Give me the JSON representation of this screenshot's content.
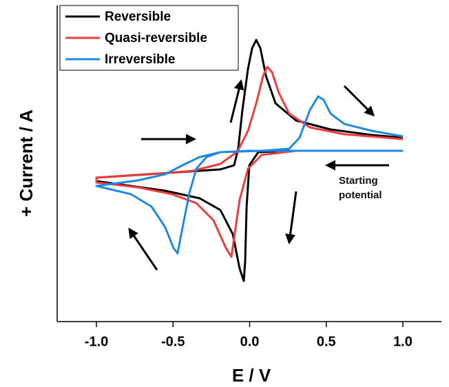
{
  "chart_data": {
    "type": "line",
    "xlabel": "E / V",
    "ylabel": "+ Current / A",
    "xlim": [
      -1.25,
      1.25
    ],
    "ylim": [
      -2.48,
      2.11
    ],
    "xticks": [
      {
        "value": -1.0,
        "label": "-1.0"
      },
      {
        "value": -0.5,
        "label": "-0.5"
      },
      {
        "value": 0.0,
        "label": "0.0"
      },
      {
        "value": 0.5,
        "label": "0.5"
      },
      {
        "value": 1.0,
        "label": "1.0"
      }
    ],
    "legend": "upper left",
    "annotations": [
      "Starting potential"
    ],
    "series": [
      {
        "name": "Reversible",
        "color": "#000000",
        "x": [
          1.0,
          0.258,
          0.056,
          -0.002,
          -0.02,
          -0.029,
          -0.038,
          -0.065,
          -0.11,
          -0.191,
          -0.326,
          -0.551,
          -0.775,
          -1.0,
          -1.0,
          -0.73,
          -0.461,
          -0.191,
          -0.101,
          -0.074,
          -0.047,
          -0.011,
          0.016,
          0.043,
          0.07,
          0.106,
          0.169,
          0.303,
          0.528,
          0.798,
          1.0
        ],
        "y": [
          0,
          0,
          -0.02,
          -0.21,
          -0.81,
          -1.61,
          -1.89,
          -1.71,
          -1.21,
          -0.86,
          -0.69,
          -0.58,
          -0.51,
          -0.44,
          -0.39,
          -0.35,
          -0.31,
          -0.27,
          -0.21,
          0.04,
          0.59,
          1.19,
          1.49,
          1.61,
          1.49,
          1.09,
          0.69,
          0.44,
          0.31,
          0.23,
          0.19
        ]
      },
      {
        "name": "Quasi-reversible",
        "color": "#ee3b3b",
        "x": [
          1.0,
          0.303,
          0.079,
          -0.011,
          -0.065,
          -0.101,
          -0.119,
          -0.155,
          -0.236,
          -0.348,
          -0.506,
          -0.73,
          -1.0,
          -1.0,
          -0.64,
          -0.371,
          -0.191,
          -0.079,
          -0.011,
          0.043,
          0.088,
          0.115,
          0.146,
          0.191,
          0.258,
          0.393,
          0.618,
          1.0
        ],
        "y": [
          0,
          0,
          -0.06,
          -0.26,
          -0.71,
          -1.26,
          -1.54,
          -1.41,
          -1.01,
          -0.76,
          -0.63,
          -0.53,
          -0.46,
          -0.39,
          -0.34,
          -0.29,
          -0.19,
          -0.01,
          0.29,
          0.69,
          1.09,
          1.22,
          1.14,
          0.84,
          0.54,
          0.34,
          0.24,
          0.17
        ]
      },
      {
        "name": "Irreversible",
        "color": "#1e88e5",
        "x": [
          1.0,
          -0.011,
          -0.191,
          -0.281,
          -0.348,
          -0.393,
          -0.438,
          -0.47,
          -0.497,
          -0.551,
          -0.64,
          -0.775,
          -1.0,
          -0.73,
          -0.551,
          -0.438,
          -0.326,
          -0.191,
          0.079,
          0.258,
          0.326,
          0.393,
          0.447,
          0.483,
          0.528,
          0.618,
          0.798,
          1.0
        ],
        "y": [
          0,
          0,
          -0.02,
          -0.09,
          -0.26,
          -0.61,
          -1.11,
          -1.49,
          -1.41,
          -1.11,
          -0.81,
          -0.63,
          -0.51,
          -0.43,
          -0.34,
          -0.21,
          -0.09,
          -0.02,
          0,
          0.03,
          0.19,
          0.59,
          0.79,
          0.74,
          0.54,
          0.39,
          0.29,
          0.21
        ]
      }
    ]
  }
}
